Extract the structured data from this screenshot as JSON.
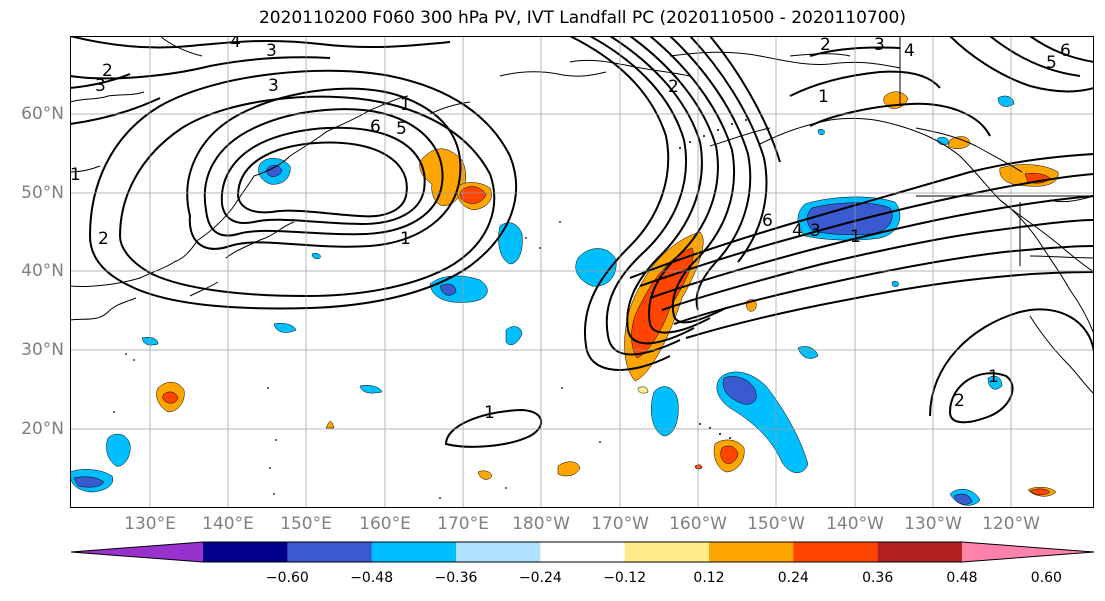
{
  "title": "2020110200 F060 300 hPa PV, IVT Landfall PC (2020110500 - 2020110700)",
  "lat_labels": [
    "60°N",
    "50°N",
    "40°N",
    "30°N",
    "20°N"
  ],
  "lon_labels": [
    "130°E",
    "140°E",
    "150°E",
    "160°E",
    "170°E",
    "180°W",
    "170°W",
    "160°W",
    "150°W",
    "140°W",
    "130°W",
    "120°W"
  ],
  "pv_contour_labels": [
    "4",
    "3",
    "2",
    "3",
    "3",
    "1",
    "6",
    "5",
    "1",
    "1",
    "2",
    "2",
    "3",
    "4",
    "6",
    "5",
    "1",
    "6",
    "4",
    "3",
    "1",
    "1",
    "2",
    "2",
    "1"
  ],
  "colorbar": {
    "colors": [
      "#9932cc",
      "#00008b",
      "#3a5bd0",
      "#00bfff",
      "#b0e2ff",
      "#ffffff",
      "#ffec8b",
      "#ffa500",
      "#ff4500",
      "#b22222",
      "#ff82ab"
    ],
    "tick_labels": [
      "−0.60",
      "−0.48",
      "−0.36",
      "−0.24",
      "−0.12",
      "0.12",
      "0.24",
      "0.36",
      "0.48",
      "0.60"
    ]
  }
}
